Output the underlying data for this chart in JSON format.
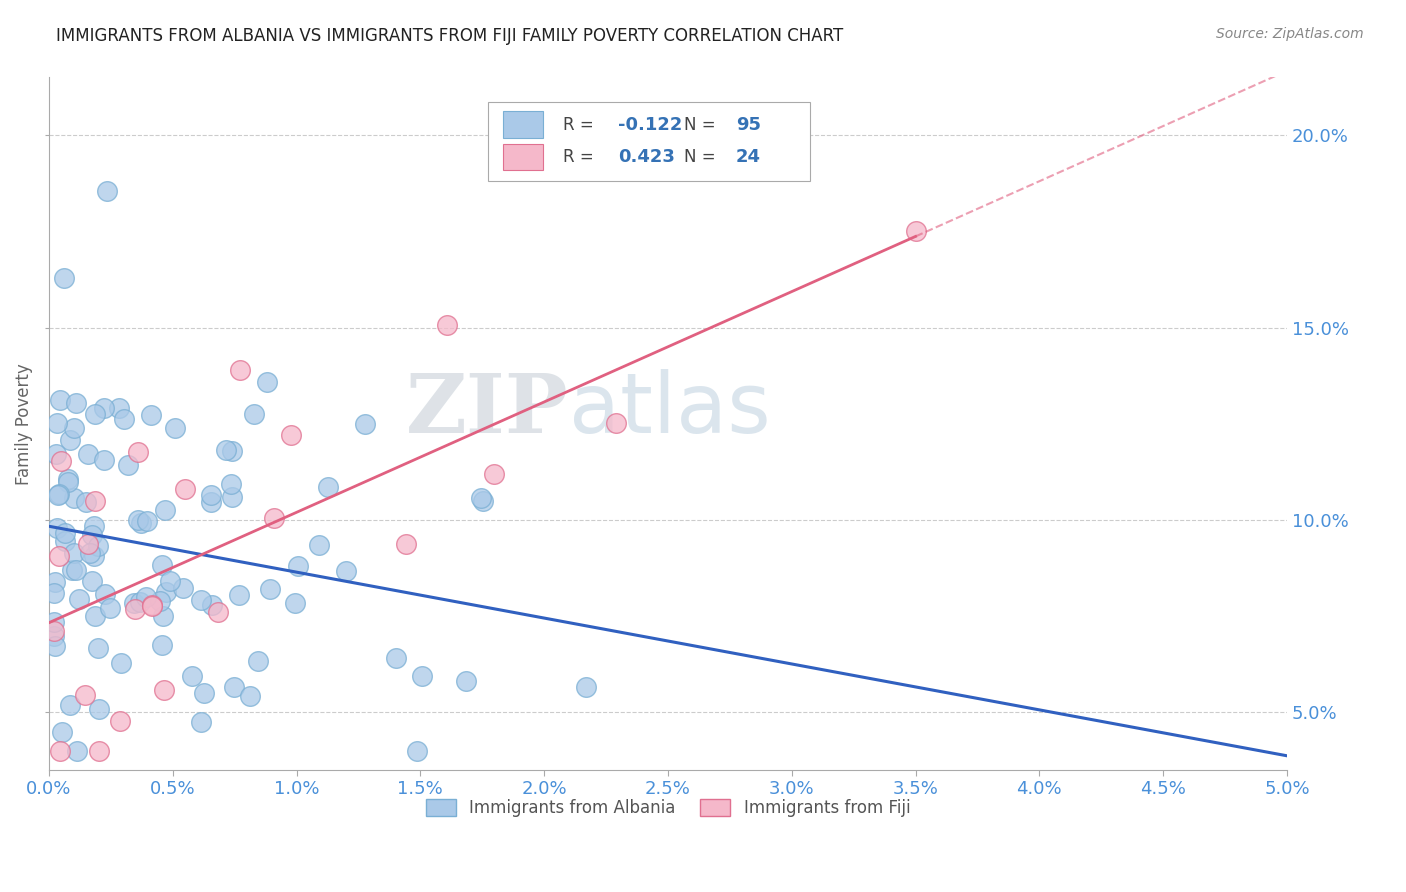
{
  "title": "IMMIGRANTS FROM ALBANIA VS IMMIGRANTS FROM FIJI FAMILY POVERTY CORRELATION CHART",
  "source": "Source: ZipAtlas.com",
  "ylabel": "Family Poverty",
  "xlim": [
    0.0,
    5.0
  ],
  "ylim": [
    3.5,
    21.5
  ],
  "xticks": [
    0.0,
    0.5,
    1.0,
    1.5,
    2.0,
    2.5,
    3.0,
    3.5,
    4.0,
    4.5,
    5.0
  ],
  "yticks": [
    5.0,
    10.0,
    15.0,
    20.0
  ],
  "albania_color": "#aac9e8",
  "albania_edge": "#7aafd4",
  "fiji_color": "#f5b8ca",
  "fiji_edge": "#e07090",
  "albania_line_color": "#3060c0",
  "fiji_line_color": "#e06080",
  "albania_R": -0.122,
  "albania_N": 95,
  "fiji_R": 0.423,
  "fiji_N": 24,
  "watermark": "ZIPatlas",
  "watermark_color": "#c5d8ea",
  "albania_intercept": 9.2,
  "albania_slope": -0.45,
  "fiji_intercept": 7.8,
  "fiji_slope": 2.1
}
